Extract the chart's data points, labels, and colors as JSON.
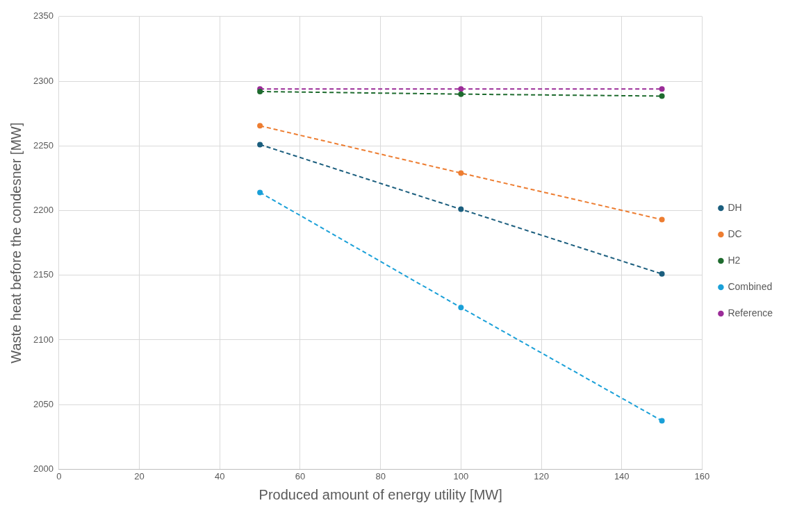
{
  "chart_data": {
    "type": "line",
    "xlabel": "Produced amount of energy utility [MW]",
    "ylabel": "Waste heat before the condesner [MW]",
    "x": [
      50,
      100,
      150
    ],
    "xlim": [
      0,
      160
    ],
    "xticks": [
      0,
      20,
      40,
      60,
      80,
      100,
      120,
      140,
      160
    ],
    "ylim": [
      2000,
      2350
    ],
    "yticks": [
      2000,
      2050,
      2100,
      2150,
      2200,
      2250,
      2300,
      2350
    ],
    "grid": true,
    "legend": "right",
    "marker": "circle",
    "line_style": "dashed",
    "series": [
      {
        "name": "DH",
        "color": "#1b5e7e",
        "values": [
          2251,
          2201,
          2151
        ]
      },
      {
        "name": "DC",
        "color": "#ed7d31",
        "values": [
          2265.5,
          2229,
          2193
        ]
      },
      {
        "name": "H2",
        "color": "#1e6b2e",
        "values": [
          2292,
          2290,
          2288.5
        ]
      },
      {
        "name": "Combined",
        "color": "#1aa0d8",
        "values": [
          2214,
          2125,
          2037.5
        ]
      },
      {
        "name": "Reference",
        "color": "#9b2c98",
        "values": [
          2294,
          2294,
          2294
        ]
      }
    ]
  }
}
